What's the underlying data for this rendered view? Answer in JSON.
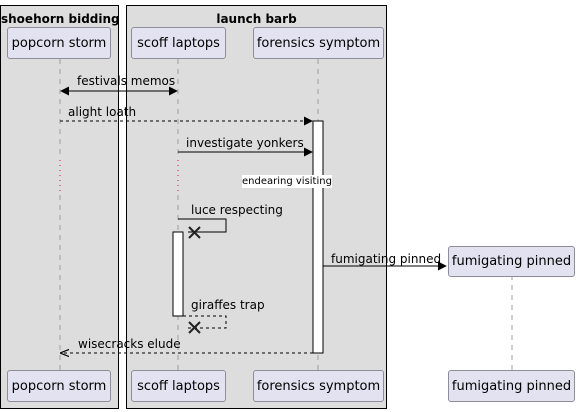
{
  "boxes": {
    "left": {
      "title": "shoehorn bidding"
    },
    "right": {
      "title": "launch barb"
    }
  },
  "participants": {
    "popcorn": "popcorn storm",
    "scoff": "scoff laptops",
    "forensics": "forensics symptom",
    "fumigating": "fumigating pinned"
  },
  "messages": {
    "m1": "festivals memos",
    "m2": "alight loath",
    "m3": "investigate yonkers",
    "divider": "endearing visiting",
    "m4": "luce respecting",
    "m5": "fumigating pinned",
    "m6": "giraffes trap",
    "m7": "wisecracks elude"
  },
  "colors": {
    "box_fill": "#dddddd",
    "participant_fill": "#e2e2f0",
    "participant_border": "#8e8e99",
    "lifeline": "#a0a0a0"
  }
}
